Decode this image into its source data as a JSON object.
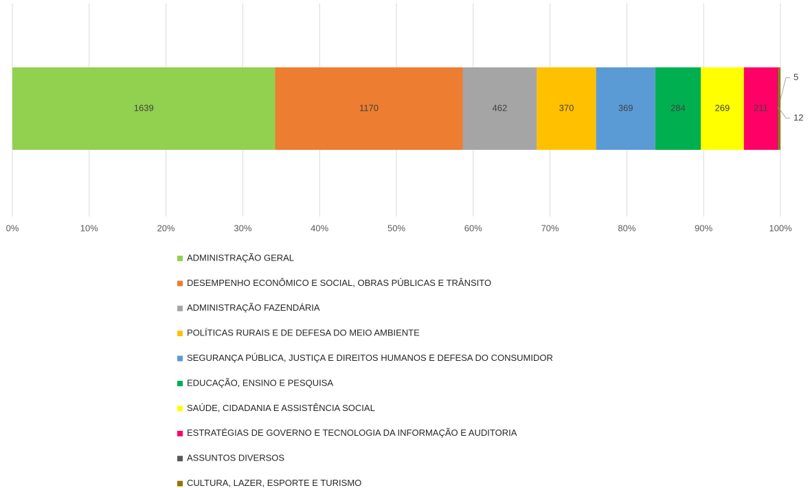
{
  "chart_data": {
    "type": "bar",
    "orientation": "horizontal",
    "stacking": "percent",
    "categories": [
      null
    ],
    "series": [
      {
        "name": "ADMINISTRAÇÃO GERAL",
        "color": "#92d050",
        "values": [
          1639
        ]
      },
      {
        "name": "DESEMPENHO ECONÔMICO E SOCIAL, OBRAS PÚBLICAS E TRÂNSITO",
        "color": "#ed7d31",
        "values": [
          1170
        ]
      },
      {
        "name": "ADMINISTRAÇÃO FAZENDÁRIA",
        "color": "#a5a5a5",
        "values": [
          462
        ]
      },
      {
        "name": "POLÍTICAS RURAIS E DE DEFESA DO MEIO AMBIENTE",
        "color": "#ffc000",
        "values": [
          370
        ]
      },
      {
        "name": "SEGURANÇA PÚBLICA, JUSTIÇA E DIREITOS HUMANOS E DEFESA DO CONSUMIDOR",
        "color": "#5b9bd5",
        "values": [
          369
        ]
      },
      {
        "name": "EDUCAÇÃO, ENSINO E PESQUISA",
        "color": "#00b050",
        "values": [
          284
        ]
      },
      {
        "name": "SAÚDE, CIDADANIA E ASSISTÊNCIA SOCIAL",
        "color": "#ffff00",
        "values": [
          269
        ]
      },
      {
        "name": "ESTRATÉGIAS DE GOVERNO E TECNOLOGIA DA INFORMAÇÃO E AUDITORIA",
        "color": "#ff0066",
        "values": [
          211
        ]
      },
      {
        "name": "ASSUNTOS DIVERSOS",
        "color": "#595959",
        "values": [
          5
        ]
      },
      {
        "name": "CULTURA, LAZER, ESPORTE E TURISMO",
        "color": "#997300",
        "values": [
          12
        ]
      }
    ],
    "xlim": [
      0,
      100
    ],
    "xticks": [
      {
        "value": 0,
        "label": "0%"
      },
      {
        "value": 10,
        "label": "10%"
      },
      {
        "value": 20,
        "label": "20%"
      },
      {
        "value": 30,
        "label": "30%"
      },
      {
        "value": 40,
        "label": "40%"
      },
      {
        "value": 50,
        "label": "50%"
      },
      {
        "value": 60,
        "label": "60%"
      },
      {
        "value": 70,
        "label": "70%"
      },
      {
        "value": 80,
        "label": "80%"
      },
      {
        "value": 90,
        "label": "90%"
      },
      {
        "value": 100,
        "label": "100%"
      }
    ],
    "grid": true,
    "legend": "bottom"
  }
}
